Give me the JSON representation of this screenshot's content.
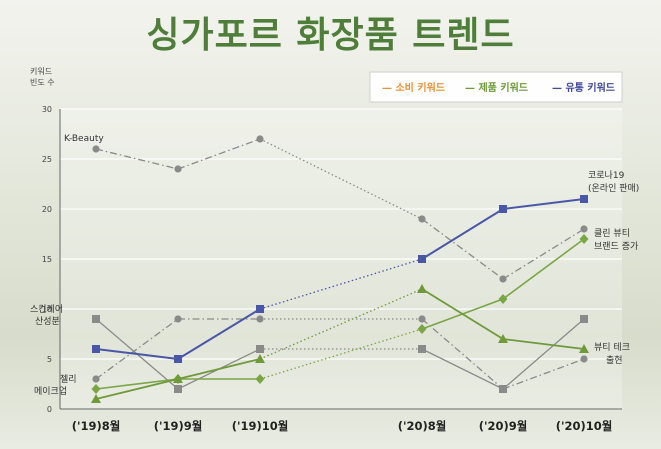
{
  "title": "싱가포르 화장품 트렌드",
  "chart_data": {
    "type": "line",
    "ylabel": [
      "키워드",
      "빈도 수"
    ],
    "ylim": [
      0,
      30
    ],
    "yticks": [
      0,
      5,
      10,
      15,
      20,
      25,
      30
    ],
    "categories": [
      "('19)8월",
      "('19)9월",
      "('19)10월",
      "('20)8월",
      "('20)9월",
      "('20)10월"
    ],
    "legend": [
      {
        "label": "— 소비 키워드",
        "color": "#e8913a"
      },
      {
        "label": "— 제품 키워드",
        "color": "#6f9a3a"
      },
      {
        "label": "— 유통 키워드",
        "color": "#3f4b9a"
      }
    ],
    "series": [
      {
        "name": "K-Beauty",
        "color": "#8a8a8a",
        "marker": "circle",
        "values": [
          26,
          24,
          27,
          19,
          13,
          18
        ]
      },
      {
        "name": "스킨케어 산성분",
        "color": "#8a8a8a",
        "marker": "circle",
        "values": [
          3,
          9,
          9,
          9,
          2,
          5
        ]
      },
      {
        "name": "",
        "color": "#8a8a8a",
        "marker": "square",
        "values": [
          9,
          2,
          6,
          6,
          2,
          9
        ]
      },
      {
        "name": "코로나19 (온라인 판매)",
        "color": "#4a57a8",
        "marker": "square",
        "values": [
          6,
          5,
          10,
          15,
          20,
          21
        ]
      },
      {
        "name": "클린 뷰티 브랜드 증가",
        "color": "#7aa646",
        "marker": "diamond",
        "values": [
          2,
          3,
          3,
          8,
          11,
          17
        ]
      },
      {
        "name": "뷰티 테크 출현",
        "color": "#6f9a3a",
        "marker": "triangle",
        "values": [
          1,
          3,
          5,
          12,
          7,
          6
        ]
      }
    ],
    "annotations": [
      {
        "text": "K-Beauty"
      },
      {
        "text": "스킨케어"
      },
      {
        "text": "산성분"
      },
      {
        "text": "젤리"
      },
      {
        "text": "메이크업"
      },
      {
        "text": "코로나19"
      },
      {
        "text": "(온라인 판매)"
      },
      {
        "text": "클린 뷰티"
      },
      {
        "text": "브랜드 증가"
      },
      {
        "text": "뷰티 테크"
      },
      {
        "text": "출현"
      }
    ],
    "grid": true
  }
}
